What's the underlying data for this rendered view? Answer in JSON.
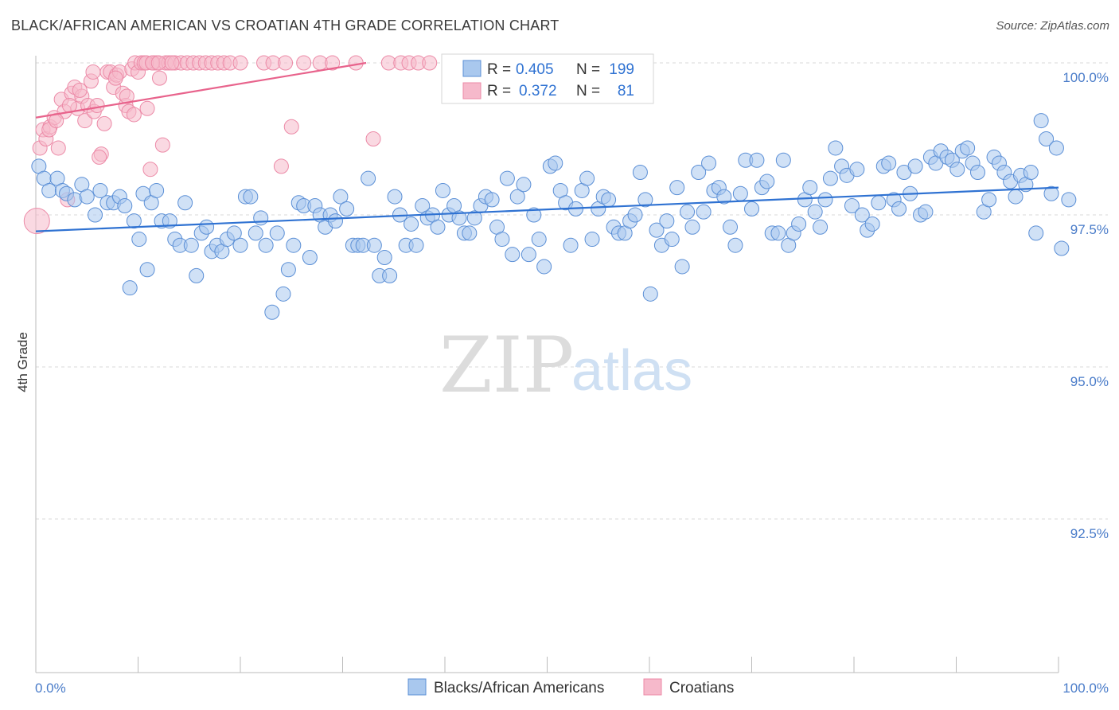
{
  "title": "BLACK/AFRICAN AMERICAN VS CROATIAN 4TH GRADE CORRELATION CHART",
  "source": "Source: ZipAtlas.com",
  "watermark": {
    "zip": "ZIP",
    "atlas": "atlas"
  },
  "colors": {
    "blue_fill": "#a9c8ee",
    "blue_stroke": "#5b8fd6",
    "blue_line": "#2f72d2",
    "pink_fill": "#f6b9cb",
    "pink_stroke": "#ec8aa7",
    "pink_line": "#e8638c",
    "tick_text": "#4a7cc9",
    "grid": "#d9d9d9"
  },
  "legend": {
    "rows": [
      {
        "r_label": "R =",
        "r_value": "0.405",
        "n_label": "N =",
        "n_value": "199"
      },
      {
        "r_label": "R =",
        "r_value": "0.372",
        "n_label": "N =",
        "n_value": "81"
      }
    ]
  },
  "chart_data": {
    "type": "scatter",
    "title": "BLACK/AFRICAN AMERICAN VS CROATIAN 4TH GRADE CORRELATION CHART",
    "xlabel": "",
    "ylabel": "4th Grade",
    "xlim": [
      0,
      100
    ],
    "ylim": [
      90.0,
      100.2
    ],
    "x_tick_labels": [
      "0.0%",
      "100.0%"
    ],
    "y_ticks": [
      {
        "value": 100.0,
        "label": "100.0%"
      },
      {
        "value": 97.5,
        "label": "97.5%"
      },
      {
        "value": 95.0,
        "label": "95.0%"
      },
      {
        "value": 92.5,
        "label": "92.5%"
      }
    ],
    "grid": "horizontal dashed",
    "legend_position": "top-center",
    "series": [
      {
        "name": "Blacks/African Americans",
        "color": "#a9c8ee",
        "R": 0.405,
        "N": 199,
        "trendline": {
          "x": [
            0,
            100
          ],
          "y": [
            97.23,
            97.95
          ]
        },
        "points": [
          [
            0.3,
            98.3
          ],
          [
            0.8,
            98.1
          ],
          [
            1.3,
            97.9
          ],
          [
            2.1,
            98.1
          ],
          [
            2.6,
            97.9
          ],
          [
            3.0,
            97.85
          ],
          [
            3.8,
            97.75
          ],
          [
            4.5,
            98.0
          ],
          [
            5.0,
            97.8
          ],
          [
            5.8,
            97.5
          ],
          [
            6.3,
            97.9
          ],
          [
            7.0,
            97.7
          ],
          [
            7.6,
            97.7
          ],
          [
            8.2,
            97.8
          ],
          [
            8.7,
            97.65
          ],
          [
            9.2,
            96.3
          ],
          [
            9.6,
            97.4
          ],
          [
            10.1,
            97.1
          ],
          [
            10.5,
            97.85
          ],
          [
            10.9,
            96.6
          ],
          [
            11.3,
            97.7
          ],
          [
            11.8,
            97.9
          ],
          [
            12.3,
            97.4
          ],
          [
            13.1,
            97.4
          ],
          [
            13.6,
            97.1
          ],
          [
            14.1,
            97.0
          ],
          [
            14.6,
            97.7
          ],
          [
            15.2,
            97.0
          ],
          [
            15.7,
            96.5
          ],
          [
            16.2,
            97.2
          ],
          [
            16.7,
            97.3
          ],
          [
            17.2,
            96.9
          ],
          [
            17.7,
            97.0
          ],
          [
            18.2,
            96.9
          ],
          [
            18.7,
            97.1
          ],
          [
            19.4,
            97.2
          ],
          [
            20.0,
            97.0
          ],
          [
            20.5,
            97.8
          ],
          [
            21.0,
            97.8
          ],
          [
            21.5,
            97.2
          ],
          [
            22.0,
            97.45
          ],
          [
            22.5,
            97.0
          ],
          [
            23.1,
            95.9
          ],
          [
            23.6,
            97.2
          ],
          [
            24.2,
            96.2
          ],
          [
            24.7,
            96.6
          ],
          [
            25.2,
            97.0
          ],
          [
            25.7,
            97.7
          ],
          [
            26.2,
            97.65
          ],
          [
            26.8,
            96.8
          ],
          [
            27.3,
            97.65
          ],
          [
            27.8,
            97.5
          ],
          [
            28.3,
            97.3
          ],
          [
            28.8,
            97.5
          ],
          [
            29.3,
            97.4
          ],
          [
            29.8,
            97.8
          ],
          [
            30.4,
            97.6
          ],
          [
            31.0,
            97.0
          ],
          [
            31.5,
            97.0
          ],
          [
            32.0,
            97.0
          ],
          [
            32.5,
            98.1
          ],
          [
            33.1,
            97.0
          ],
          [
            33.6,
            96.5
          ],
          [
            34.1,
            96.8
          ],
          [
            34.6,
            96.5
          ],
          [
            35.1,
            97.8
          ],
          [
            35.6,
            97.5
          ],
          [
            36.2,
            97.0
          ],
          [
            36.7,
            97.35
          ],
          [
            37.2,
            97.0
          ],
          [
            37.8,
            97.65
          ],
          [
            38.3,
            97.45
          ],
          [
            38.8,
            97.5
          ],
          [
            39.3,
            97.3
          ],
          [
            39.8,
            97.9
          ],
          [
            40.4,
            97.5
          ],
          [
            40.9,
            97.65
          ],
          [
            41.4,
            97.45
          ],
          [
            41.9,
            97.2
          ],
          [
            42.4,
            97.2
          ],
          [
            42.9,
            97.45
          ],
          [
            43.5,
            97.65
          ],
          [
            44.0,
            97.8
          ],
          [
            44.6,
            97.75
          ],
          [
            45.1,
            97.3
          ],
          [
            45.6,
            97.1
          ],
          [
            46.1,
            98.1
          ],
          [
            46.6,
            96.85
          ],
          [
            47.1,
            97.8
          ],
          [
            47.7,
            98.0
          ],
          [
            48.2,
            96.85
          ],
          [
            48.7,
            97.5
          ],
          [
            49.2,
            97.1
          ],
          [
            49.7,
            96.65
          ],
          [
            50.3,
            98.3
          ],
          [
            50.8,
            98.35
          ],
          [
            51.3,
            97.9
          ],
          [
            51.8,
            97.7
          ],
          [
            52.3,
            97.0
          ],
          [
            52.8,
            97.6
          ],
          [
            53.4,
            97.9
          ],
          [
            53.9,
            98.1
          ],
          [
            54.4,
            97.1
          ],
          [
            55.0,
            97.6
          ],
          [
            55.5,
            97.8
          ],
          [
            56.0,
            97.75
          ],
          [
            56.5,
            97.3
          ],
          [
            57.0,
            97.2
          ],
          [
            57.6,
            97.2
          ],
          [
            58.1,
            97.4
          ],
          [
            58.6,
            97.5
          ],
          [
            59.1,
            98.2
          ],
          [
            59.6,
            97.75
          ],
          [
            60.1,
            96.2
          ],
          [
            60.7,
            97.25
          ],
          [
            61.2,
            97.0
          ],
          [
            61.7,
            97.4
          ],
          [
            62.2,
            97.1
          ],
          [
            62.7,
            97.95
          ],
          [
            63.2,
            96.65
          ],
          [
            63.7,
            97.55
          ],
          [
            64.2,
            97.3
          ],
          [
            64.8,
            98.2
          ],
          [
            65.3,
            97.55
          ],
          [
            65.8,
            98.35
          ],
          [
            66.3,
            97.9
          ],
          [
            66.8,
            97.95
          ],
          [
            67.3,
            97.8
          ],
          [
            67.9,
            97.3
          ],
          [
            68.4,
            97.0
          ],
          [
            68.9,
            97.85
          ],
          [
            69.4,
            98.4
          ],
          [
            70.0,
            97.6
          ],
          [
            70.5,
            98.4
          ],
          [
            71.0,
            97.95
          ],
          [
            71.5,
            98.05
          ],
          [
            72.0,
            97.2
          ],
          [
            72.6,
            97.2
          ],
          [
            73.1,
            98.4
          ],
          [
            73.6,
            97.0
          ],
          [
            74.1,
            97.2
          ],
          [
            74.6,
            97.35
          ],
          [
            75.2,
            97.75
          ],
          [
            75.7,
            97.95
          ],
          [
            76.2,
            97.55
          ],
          [
            76.7,
            97.3
          ],
          [
            77.2,
            97.75
          ],
          [
            77.7,
            98.1
          ],
          [
            78.2,
            98.6
          ],
          [
            78.8,
            98.3
          ],
          [
            79.3,
            98.15
          ],
          [
            79.8,
            97.65
          ],
          [
            80.3,
            98.25
          ],
          [
            80.8,
            97.5
          ],
          [
            81.3,
            97.25
          ],
          [
            81.8,
            97.35
          ],
          [
            82.4,
            97.7
          ],
          [
            82.9,
            98.3
          ],
          [
            83.4,
            98.35
          ],
          [
            83.9,
            97.75
          ],
          [
            84.4,
            97.6
          ],
          [
            84.9,
            98.2
          ],
          [
            85.5,
            97.85
          ],
          [
            86.0,
            98.3
          ],
          [
            86.5,
            97.5
          ],
          [
            87.0,
            97.55
          ],
          [
            87.5,
            98.45
          ],
          [
            88.0,
            98.35
          ],
          [
            88.5,
            98.55
          ],
          [
            89.1,
            98.45
          ],
          [
            89.6,
            98.4
          ],
          [
            90.1,
            98.25
          ],
          [
            90.6,
            98.55
          ],
          [
            91.1,
            98.6
          ],
          [
            91.6,
            98.35
          ],
          [
            92.1,
            98.2
          ],
          [
            92.7,
            97.55
          ],
          [
            93.2,
            97.75
          ],
          [
            93.7,
            98.45
          ],
          [
            94.2,
            98.35
          ],
          [
            94.7,
            98.2
          ],
          [
            95.3,
            98.05
          ],
          [
            95.8,
            97.8
          ],
          [
            96.3,
            98.15
          ],
          [
            96.8,
            98.0
          ],
          [
            97.3,
            98.2
          ],
          [
            97.8,
            97.2
          ],
          [
            98.3,
            99.05
          ],
          [
            98.8,
            98.75
          ],
          [
            99.3,
            97.85
          ],
          [
            99.8,
            98.6
          ],
          [
            100.3,
            96.95
          ],
          [
            101.0,
            97.75
          ]
        ]
      },
      {
        "name": "Croatians",
        "color": "#f6b9cb",
        "R": 0.372,
        "N": 81,
        "trendline": {
          "x": [
            0,
            32.3
          ],
          "y": [
            99.1,
            100.0
          ]
        },
        "points": [
          [
            0.1,
            97.4
          ],
          [
            0.4,
            98.6
          ],
          [
            0.7,
            98.9
          ],
          [
            1.0,
            98.75
          ],
          [
            1.4,
            98.95
          ],
          [
            1.8,
            99.1
          ],
          [
            2.2,
            98.6
          ],
          [
            2.5,
            99.4
          ],
          [
            2.8,
            99.2
          ],
          [
            3.1,
            97.75
          ],
          [
            3.5,
            99.5
          ],
          [
            3.8,
            99.6
          ],
          [
            4.1,
            99.25
          ],
          [
            4.5,
            99.45
          ],
          [
            4.8,
            99.05
          ],
          [
            5.1,
            99.3
          ],
          [
            5.4,
            99.7
          ],
          [
            5.7,
            99.2
          ],
          [
            6.0,
            99.3
          ],
          [
            6.4,
            98.5
          ],
          [
            6.7,
            99.0
          ],
          [
            7.0,
            99.85
          ],
          [
            7.3,
            99.85
          ],
          [
            7.6,
            99.6
          ],
          [
            7.9,
            99.8
          ],
          [
            8.2,
            99.85
          ],
          [
            8.5,
            99.5
          ],
          [
            8.8,
            99.3
          ],
          [
            9.1,
            99.2
          ],
          [
            9.4,
            99.9
          ],
          [
            9.7,
            100.0
          ],
          [
            10.0,
            99.85
          ],
          [
            10.3,
            100.0
          ],
          [
            10.6,
            100.0
          ],
          [
            10.9,
            99.25
          ],
          [
            11.2,
            98.25
          ],
          [
            11.5,
            100.0
          ],
          [
            11.8,
            100.0
          ],
          [
            12.1,
            99.75
          ],
          [
            12.4,
            98.65
          ],
          [
            12.7,
            100.0
          ],
          [
            13.0,
            100.0
          ],
          [
            13.6,
            100.0
          ],
          [
            14.2,
            100.0
          ],
          [
            14.8,
            100.0
          ],
          [
            15.4,
            100.0
          ],
          [
            16.0,
            100.0
          ],
          [
            16.6,
            100.0
          ],
          [
            17.2,
            100.0
          ],
          [
            17.8,
            100.0
          ],
          [
            18.4,
            100.0
          ],
          [
            19.0,
            100.0
          ],
          [
            20.0,
            100.0
          ],
          [
            22.3,
            100.0
          ],
          [
            23.2,
            100.0
          ],
          [
            24.0,
            98.3
          ],
          [
            24.4,
            100.0
          ],
          [
            25.0,
            98.95
          ],
          [
            26.2,
            100.0
          ],
          [
            27.8,
            100.0
          ],
          [
            29.0,
            100.0
          ],
          [
            31.3,
            100.0
          ],
          [
            33.0,
            98.75
          ],
          [
            34.5,
            100.0
          ],
          [
            35.7,
            100.0
          ],
          [
            36.5,
            100.0
          ],
          [
            37.4,
            100.0
          ],
          [
            38.5,
            100.0
          ],
          [
            1.3,
            98.9
          ],
          [
            2.0,
            99.05
          ],
          [
            3.3,
            99.3
          ],
          [
            4.3,
            99.55
          ],
          [
            5.6,
            99.85
          ],
          [
            6.2,
            98.45
          ],
          [
            7.8,
            99.75
          ],
          [
            8.9,
            99.45
          ],
          [
            9.6,
            99.15
          ],
          [
            10.8,
            100.0
          ],
          [
            11.4,
            100.0
          ],
          [
            12.0,
            100.0
          ],
          [
            13.3,
            100.0
          ]
        ]
      }
    ]
  },
  "bottom_legend": {
    "items": [
      "Blacks/African Americans",
      "Croatians"
    ]
  }
}
